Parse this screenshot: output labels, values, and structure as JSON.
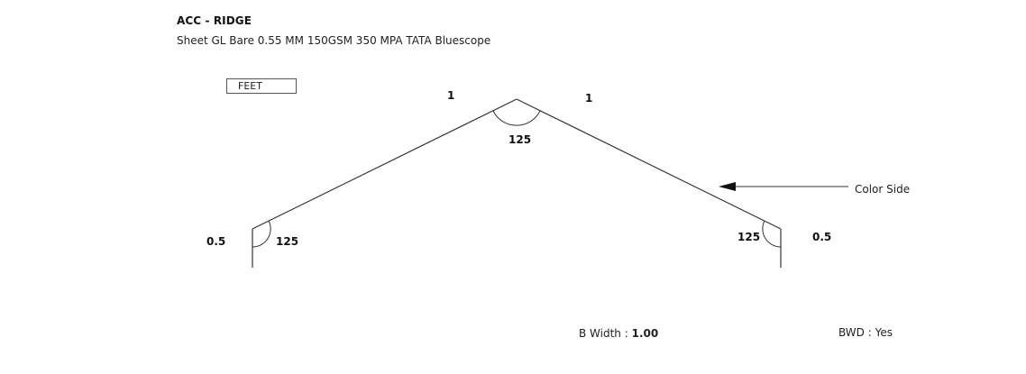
{
  "header": {
    "title": "ACC - RIDGE",
    "subtitle": "Sheet GL Bare 0.55 MM 150GSM 350 MPA TATA Bluescope"
  },
  "unit": {
    "label": "FEET"
  },
  "profile": {
    "segments": {
      "left_hem": "0.5",
      "left_slope": "1",
      "right_slope": "1",
      "right_hem": "0.5"
    },
    "angles": {
      "left": "125",
      "apex": "125",
      "right": "125"
    },
    "color_side_label": "Color Side"
  },
  "footer": {
    "b_width_label": "B Width :",
    "b_width_value": "1.00",
    "bwd_label": "BWD : Yes"
  },
  "colors": {
    "line": "#333333",
    "text": "#111111"
  }
}
